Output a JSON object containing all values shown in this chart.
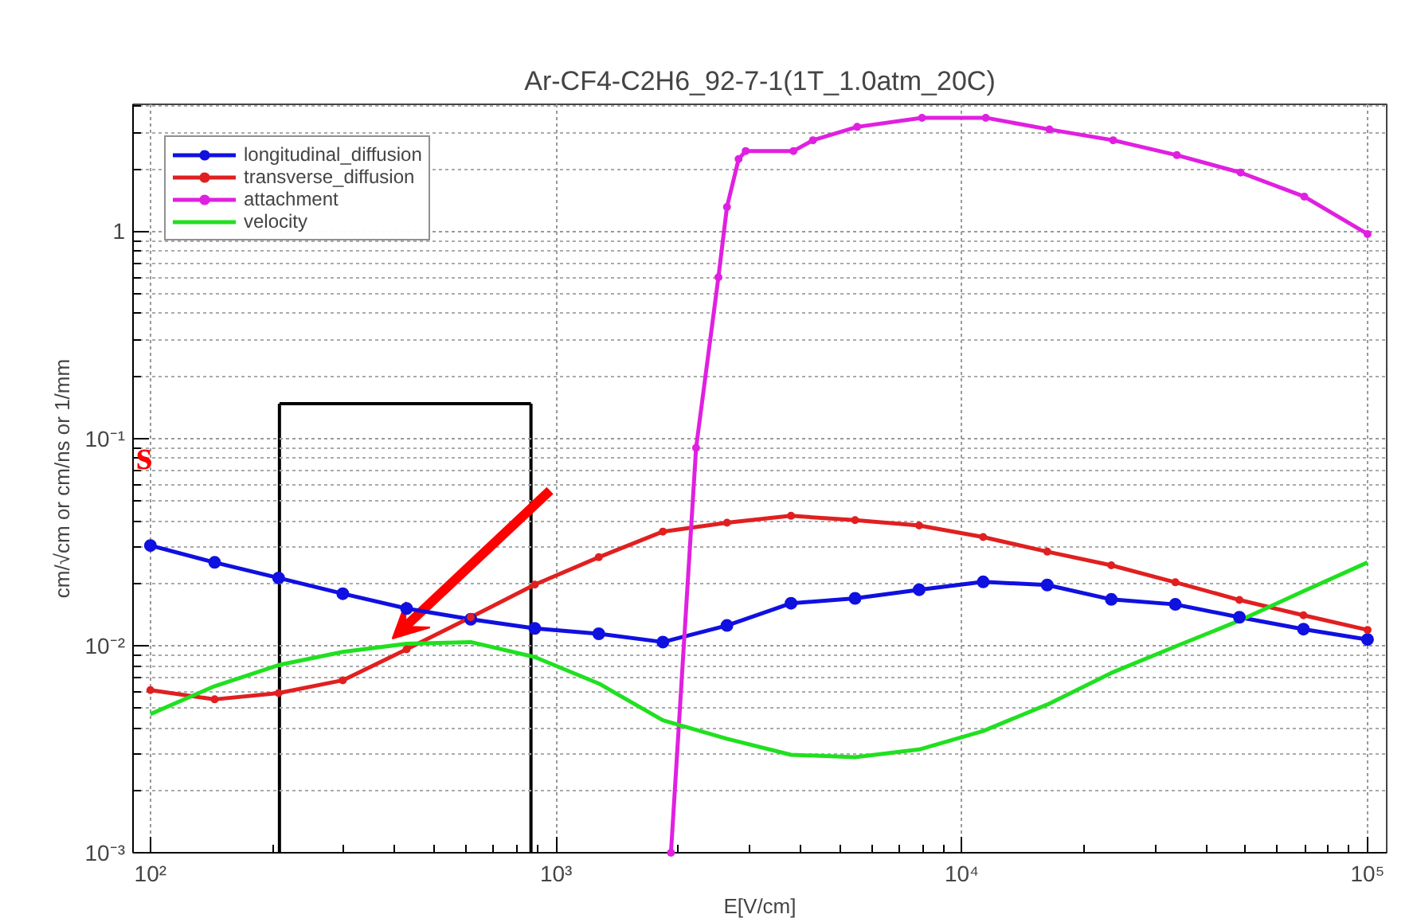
{
  "chart_data": {
    "type": "line",
    "title": "Ar-CF4-C2H6_92-7-1(1T_1.0atm_20C)",
    "xlabel": "E[V/cm]",
    "ylabel": "cm/√cm or cm/ns or 1/mm",
    "annotations": [
      "s"
    ],
    "x": [
      100,
      144,
      207,
      298,
      428,
      616,
      886,
      1274,
      1833,
      2637,
      3793,
      5456,
      7848,
      11288,
      16238,
      23357,
      33598,
      48329,
      69519,
      100000
    ],
    "series": [
      {
        "name": "longitudinal_diffusion",
        "color": "#1010e0",
        "marker": "circle",
        "values": [
          0.0304,
          0.0252,
          0.0212,
          0.0178,
          0.0151,
          0.0134,
          0.0121,
          0.0114,
          0.0104,
          0.0125,
          0.016,
          0.0169,
          0.0186,
          0.0203,
          0.0196,
          0.0167,
          0.0158,
          0.0137,
          0.012,
          0.0107
        ]
      },
      {
        "name": "transverse_diffusion",
        "color": "#e02020",
        "marker": "circle",
        "values": [
          0.0061,
          0.0055,
          0.0059,
          0.0068,
          0.0096,
          0.0137,
          0.0197,
          0.0267,
          0.0355,
          0.0392,
          0.0423,
          0.0403,
          0.038,
          0.0334,
          0.0284,
          0.0244,
          0.0202,
          0.0166,
          0.014,
          0.0119
        ]
      },
      {
        "name": "attachment",
        "color": "#e020e0",
        "marker": "circle",
        "x": [
          1919,
          2213,
          2512,
          2637,
          2817,
          2933,
          3846,
          4295,
          5521,
          7976,
          11455,
          16440,
          23605,
          33884,
          48650,
          69823,
          100000
        ],
        "values": [
          0.001,
          0.09,
          0.6,
          1.31,
          2.23,
          2.44,
          2.44,
          2.75,
          3.19,
          3.53,
          3.53,
          3.1,
          2.75,
          2.33,
          1.92,
          1.47,
          0.97
        ]
      },
      {
        "name": "velocity",
        "color": "#20e020",
        "marker": "none",
        "values": [
          0.00467,
          0.00637,
          0.00805,
          0.00932,
          0.0102,
          0.0104,
          0.0088,
          0.00656,
          0.00436,
          0.00355,
          0.00297,
          0.00289,
          0.00315,
          0.00387,
          0.00519,
          0.00738,
          0.00989,
          0.0132,
          0.0183,
          0.0252
        ]
      }
    ],
    "log": "xy",
    "xlim": [
      90.6,
      111500
    ],
    "ylim": [
      0.001,
      4.1
    ],
    "xticks": [
      {
        "value": 100,
        "label": "10²"
      },
      {
        "value": 1000,
        "label": "10³"
      },
      {
        "value": 10000,
        "label": "10⁴"
      },
      {
        "value": 100000,
        "label": "10⁵"
      }
    ],
    "yticks": [
      {
        "value": 0.001,
        "label": "10⁻³"
      },
      {
        "value": 0.01,
        "label": "10⁻²"
      },
      {
        "value": 0.1,
        "label": "10⁻¹"
      },
      1
    ],
    "ref_lines": [
      {
        "axis": "x",
        "value": 208,
        "color": "#000000"
      },
      {
        "axis": "x",
        "value": 867,
        "color": "#000000"
      },
      {
        "axis": "y",
        "value": 0.147,
        "color": "#000000"
      }
    ],
    "grid": true,
    "legend": "top left",
    "line_style": "solid"
  }
}
